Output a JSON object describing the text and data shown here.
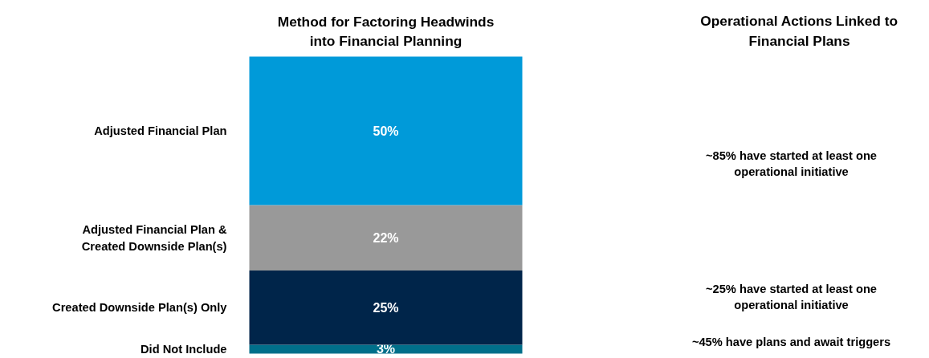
{
  "chart_data": {
    "type": "bar",
    "stacked": true,
    "title": "Method for Factoring Headwinds\ninto Financial Planning",
    "categories": [
      null
    ],
    "series": [
      {
        "name": "Did Not Include",
        "color": "#006f8a",
        "values": [
          3
        ],
        "value_labels": [
          "3%"
        ]
      },
      {
        "name": "Created Downside Plan(s) Only",
        "color": "#00254a",
        "values": [
          25
        ],
        "value_labels": [
          "25%"
        ]
      },
      {
        "name": "Adjusted Financial Plan &\nCreated Downside Plan(s)",
        "color": "#999999",
        "values": [
          22
        ],
        "value_labels": [
          "22%"
        ]
      },
      {
        "name": "Adjusted Financial Plan",
        "color": "#009ad9",
        "values": [
          50
        ],
        "value_labels": [
          "50%"
        ]
      }
    ],
    "tick_labels": false,
    "grid": false,
    "annotations": [
      "Operational Actions Linked to\nFinancial Plans",
      "~85% have started at least one\noperational initiative",
      "~25% have started at least one\noperational initiative",
      "~45% have plans and await triggers"
    ]
  }
}
